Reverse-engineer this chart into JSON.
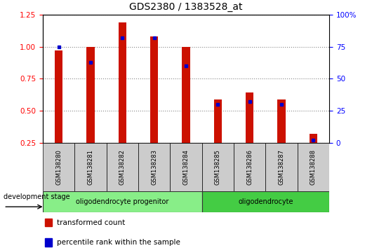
{
  "title": "GDS2380 / 1383528_at",
  "samples": [
    "GSM138280",
    "GSM138281",
    "GSM138282",
    "GSM138283",
    "GSM138284",
    "GSM138285",
    "GSM138286",
    "GSM138287",
    "GSM138288"
  ],
  "transformed_count": [
    0.97,
    1.0,
    1.19,
    1.08,
    1.0,
    0.59,
    0.64,
    0.59,
    0.32
  ],
  "percentile_rank": [
    0.75,
    0.63,
    0.82,
    0.82,
    0.6,
    0.3,
    0.32,
    0.3,
    0.02
  ],
  "ylim_left": [
    0.25,
    1.25
  ],
  "yticks_left": [
    0.25,
    0.5,
    0.75,
    1.0,
    1.25
  ],
  "yticks_right": [
    0,
    25,
    50,
    75,
    100
  ],
  "bar_color": "#cc1100",
  "dot_color": "#0000cc",
  "groups": [
    {
      "label": "oligodendrocyte progenitor",
      "indices": [
        0,
        1,
        2,
        3,
        4
      ],
      "color": "#88ee88"
    },
    {
      "label": "oligodendrocyte",
      "indices": [
        5,
        6,
        7,
        8
      ],
      "color": "#44cc44"
    }
  ],
  "legend_items": [
    {
      "label": "transformed count",
      "color": "#cc1100"
    },
    {
      "label": "percentile rank within the sample",
      "color": "#0000cc"
    }
  ],
  "dev_stage_label": "development stage",
  "bar_width": 0.25,
  "base_value": 0.25
}
